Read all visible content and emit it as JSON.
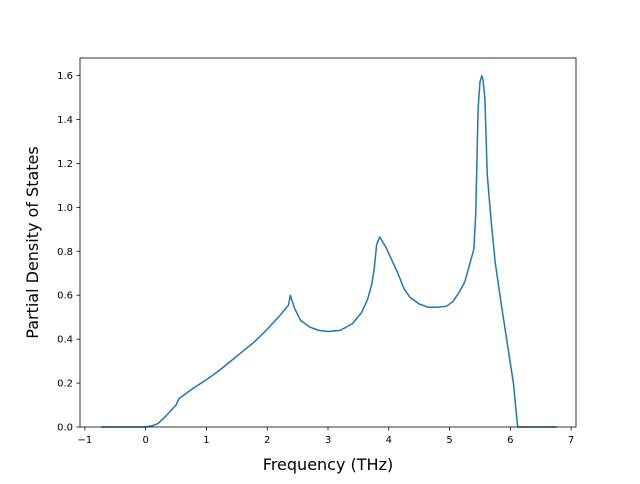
{
  "chart_data": {
    "type": "line",
    "title": "",
    "xlabel": "Frequency (THz)",
    "ylabel": "Partial Density of States",
    "xlim": [
      -1.08,
      7.08
    ],
    "ylim": [
      0.0,
      1.68
    ],
    "xticks": [
      -1,
      0,
      1,
      2,
      3,
      4,
      5,
      6,
      7
    ],
    "xtick_labels": [
      "−1",
      "0",
      "1",
      "2",
      "3",
      "4",
      "5",
      "6",
      "7"
    ],
    "yticks": [
      0.0,
      0.2,
      0.4,
      0.6,
      0.8,
      1.0,
      1.2,
      1.4,
      1.6
    ],
    "ytick_labels": [
      "0.0",
      "0.2",
      "0.4",
      "0.6",
      "0.8",
      "1.0",
      "1.2",
      "1.4",
      "1.6"
    ],
    "grid": false,
    "legend": "none",
    "colors": {
      "line": "#1f77b4",
      "axes": "#000000",
      "background": "#ffffff"
    },
    "series": [
      {
        "x": [
          -0.72,
          -0.3,
          0.0,
          0.1,
          0.2,
          0.3,
          0.4,
          0.5,
          0.55,
          0.6,
          0.7,
          0.8,
          1.0,
          1.2,
          1.4,
          1.6,
          1.8,
          2.0,
          2.2,
          2.35,
          2.38,
          2.45,
          2.55,
          2.7,
          2.85,
          3.0,
          3.2,
          3.4,
          3.55,
          3.65,
          3.72,
          3.76,
          3.8,
          3.85,
          3.95,
          4.05,
          4.15,
          4.25,
          4.35,
          4.5,
          4.65,
          4.8,
          4.95,
          5.05,
          5.15,
          5.25,
          5.3,
          5.35,
          5.4,
          5.43,
          5.47,
          5.5,
          5.53,
          5.55,
          5.58,
          5.62,
          5.68,
          5.75,
          5.85,
          5.95,
          6.05,
          6.12,
          6.75
        ],
        "y": [
          0.0,
          0.0,
          0.0,
          0.005,
          0.015,
          0.04,
          0.07,
          0.1,
          0.13,
          0.14,
          0.16,
          0.18,
          0.215,
          0.255,
          0.3,
          0.345,
          0.39,
          0.445,
          0.505,
          0.555,
          0.6,
          0.54,
          0.485,
          0.455,
          0.44,
          0.435,
          0.44,
          0.47,
          0.52,
          0.58,
          0.65,
          0.72,
          0.83,
          0.865,
          0.82,
          0.76,
          0.7,
          0.63,
          0.59,
          0.56,
          0.545,
          0.545,
          0.55,
          0.57,
          0.61,
          0.66,
          0.71,
          0.76,
          0.81,
          0.97,
          1.45,
          1.57,
          1.6,
          1.58,
          1.5,
          1.15,
          0.95,
          0.75,
          0.56,
          0.38,
          0.2,
          0.0,
          0.0
        ]
      }
    ]
  }
}
